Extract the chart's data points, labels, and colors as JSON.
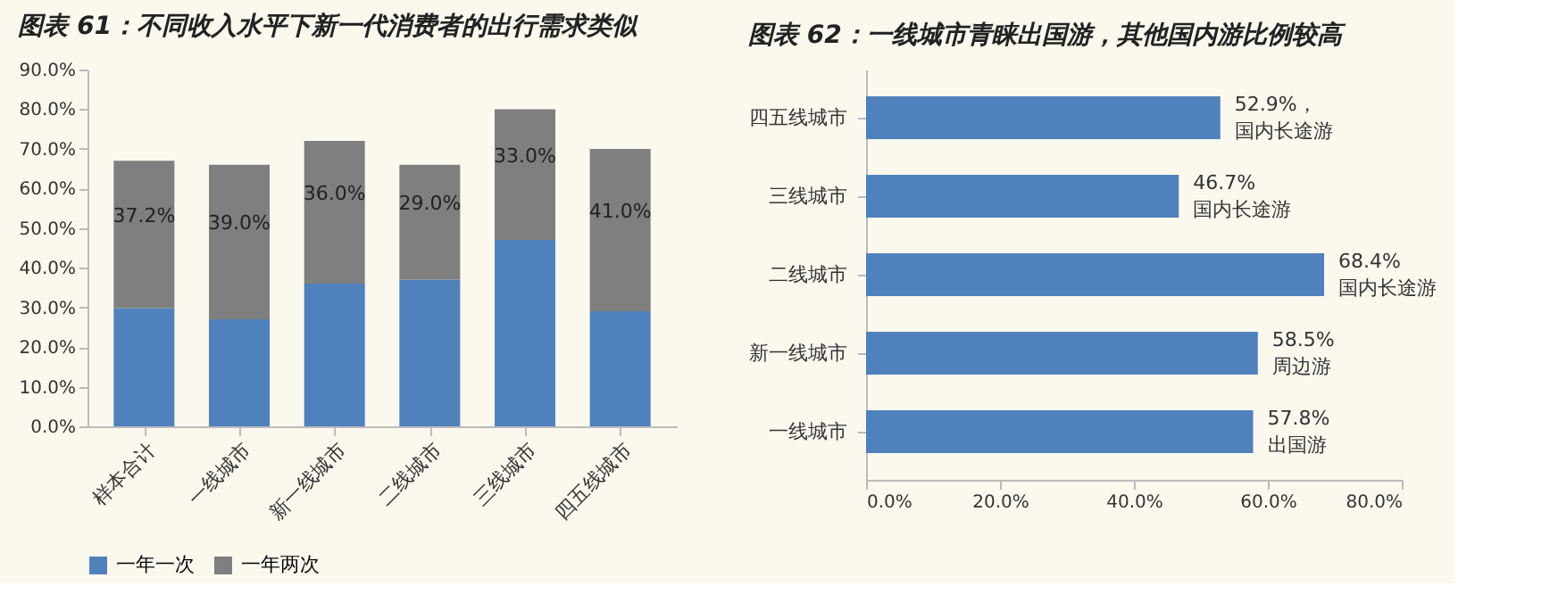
{
  "chart_data": [
    {
      "type": "bar",
      "title": "图表 61：不同收入水平下新一代消费者的出行需求类似",
      "stacked": true,
      "legend": "bottom",
      "grid": false,
      "categories": [
        "样本合计",
        "一线城市",
        "新一线城市",
        "二线城市",
        "三线城市",
        "四五线城市"
      ],
      "ylim": [
        0,
        90
      ],
      "yticks": [
        {
          "value": 0,
          "label": "0.0%"
        },
        {
          "value": 10,
          "label": "10.0%"
        },
        {
          "value": 20,
          "label": "20.0%"
        },
        {
          "value": 30,
          "label": "30.0%"
        },
        {
          "value": 40,
          "label": "40.0%"
        },
        {
          "value": 50,
          "label": "50.0%"
        },
        {
          "value": 60,
          "label": "60.0%"
        },
        {
          "value": 70,
          "label": "70.0%"
        },
        {
          "value": 80,
          "label": "80.0%"
        },
        {
          "value": 90,
          "label": "90.0%"
        }
      ],
      "series": [
        {
          "name": "一年一次",
          "color": "#4f81bd",
          "values": [
            29.8,
            27,
            36,
            37,
            47,
            29
          ]
        },
        {
          "name": "一年两次",
          "color": "#7f7f7f",
          "values": [
            37.2,
            39.0,
            36.0,
            29.0,
            33.0,
            41.0
          ],
          "value_labels": [
            "37.2%",
            "39.0%",
            "36.0%",
            "29.0%",
            "33.0%",
            "41.0%"
          ]
        }
      ]
    },
    {
      "type": "bar",
      "title": "图表 62：一线城市青睐出国游，其他国内游比例较高",
      "orientation": "horizontal",
      "grid": false,
      "categories": [
        "四五线城市",
        "三线城市",
        "二线城市",
        "新一线城市",
        "一线城市"
      ],
      "xlim": [
        0,
        80
      ],
      "xticks": [
        {
          "value": 0,
          "label": "0.0%"
        },
        {
          "value": 20,
          "label": "20.0%"
        },
        {
          "value": 40,
          "label": "40.0%"
        },
        {
          "value": 60,
          "label": "60.0%"
        },
        {
          "value": 80,
          "label": "80.0%"
        }
      ],
      "series": [
        {
          "color": "#4f81bd",
          "values": [
            52.9,
            46.7,
            68.4,
            58.5,
            57.8
          ],
          "value_labels": [
            "52.9%，",
            "46.7%",
            "68.4%",
            "58.5%",
            "57.8%"
          ]
        }
      ],
      "annotations": [
        {
          "text": "国内长途游",
          "x": 52.9,
          "y": "四五线城市"
        },
        {
          "text": "国内长途游",
          "x": 46.7,
          "y": "三线城市"
        },
        {
          "text": "国内长途游",
          "x": 68.4,
          "y": "二线城市"
        },
        {
          "text": "周边游",
          "x": 58.5,
          "y": "新一线城市"
        },
        {
          "text": "出国游",
          "x": 57.8,
          "y": "一线城市"
        }
      ]
    }
  ]
}
